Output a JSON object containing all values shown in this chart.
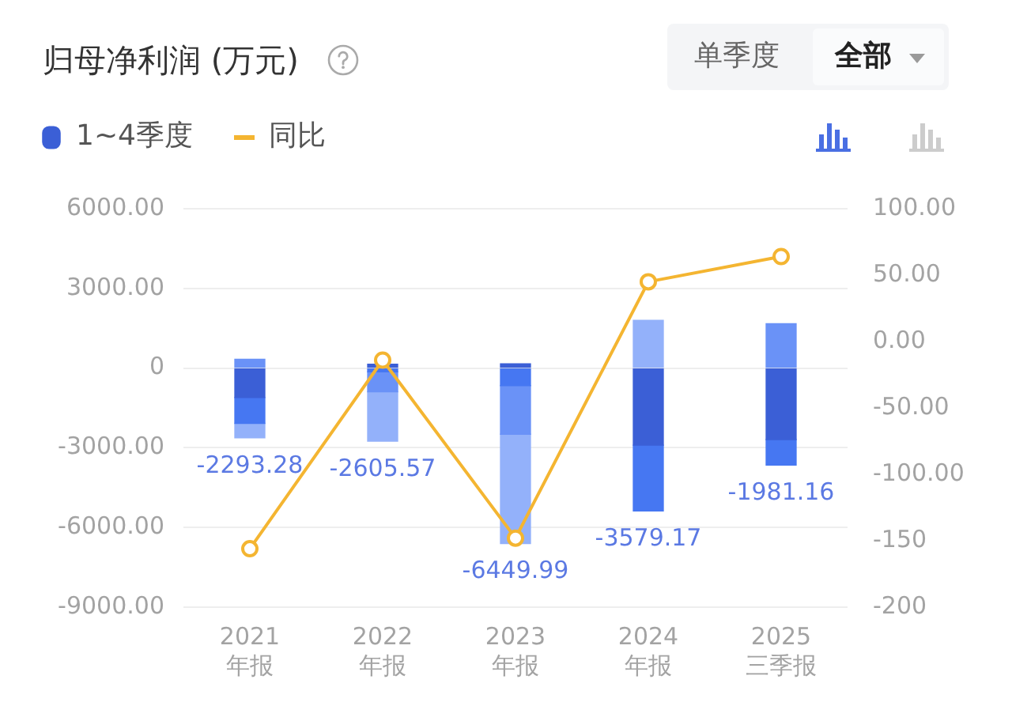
{
  "chart_data": {
    "type": "bar",
    "title": "归母净利润 (万元)",
    "annotations": [
      "单季度",
      "全部"
    ],
    "categories": [
      "2021\n年报",
      "2022\n年报",
      "2023\n年报",
      "2024\n年报",
      "2025\n三季报"
    ],
    "stacked": true,
    "series": [
      {
        "name": "1~4季度",
        "color": "#3b5fd6",
        "values": [
          -1110,
          150,
          160,
          -2900,
          -2690
        ]
      },
      {
        "color": "#4677f2",
        "values": [
          -970,
          -140,
          -660,
          -2480,
          -960
        ]
      },
      {
        "color": "#6a92f7",
        "values": [
          330,
          -750,
          -1830,
          null,
          1668.84
        ]
      },
      {
        "color": "#93b1fa",
        "values": [
          -543.28,
          -1865.57,
          -4119.99,
          1800.83,
          null
        ]
      },
      {
        "name": "同比",
        "type": "line",
        "axis": "y2",
        "color": "#f4b531",
        "marker": "circle",
        "values": [
          -156,
          -14,
          -148,
          45,
          64
        ]
      }
    ],
    "totals": [
      "-2293.28",
      "-2605.57",
      "-6449.99",
      "-3579.17",
      "-1981.16"
    ],
    "ylim": [
      -9000,
      6000
    ],
    "yticks": [
      {
        "value": 6000,
        "label": "6000.00"
      },
      {
        "value": 3000,
        "label": "3000.00"
      },
      0,
      {
        "value": -3000,
        "label": "-3000.00"
      },
      {
        "value": -6000,
        "label": "-6000.00"
      },
      {
        "value": -9000,
        "label": "-9000.00"
      }
    ],
    "y2lim": [
      -200,
      100
    ],
    "y2ticks": [
      {
        "value": 100,
        "label": "100.00"
      },
      {
        "value": 50,
        "label": "50.00"
      },
      {
        "value": 0,
        "label": "0.00"
      },
      {
        "value": -50,
        "label": "-50.00"
      },
      {
        "value": -100,
        "label": "-100.00"
      },
      -150,
      -200
    ],
    "grid": "y",
    "legend": "top left"
  }
}
